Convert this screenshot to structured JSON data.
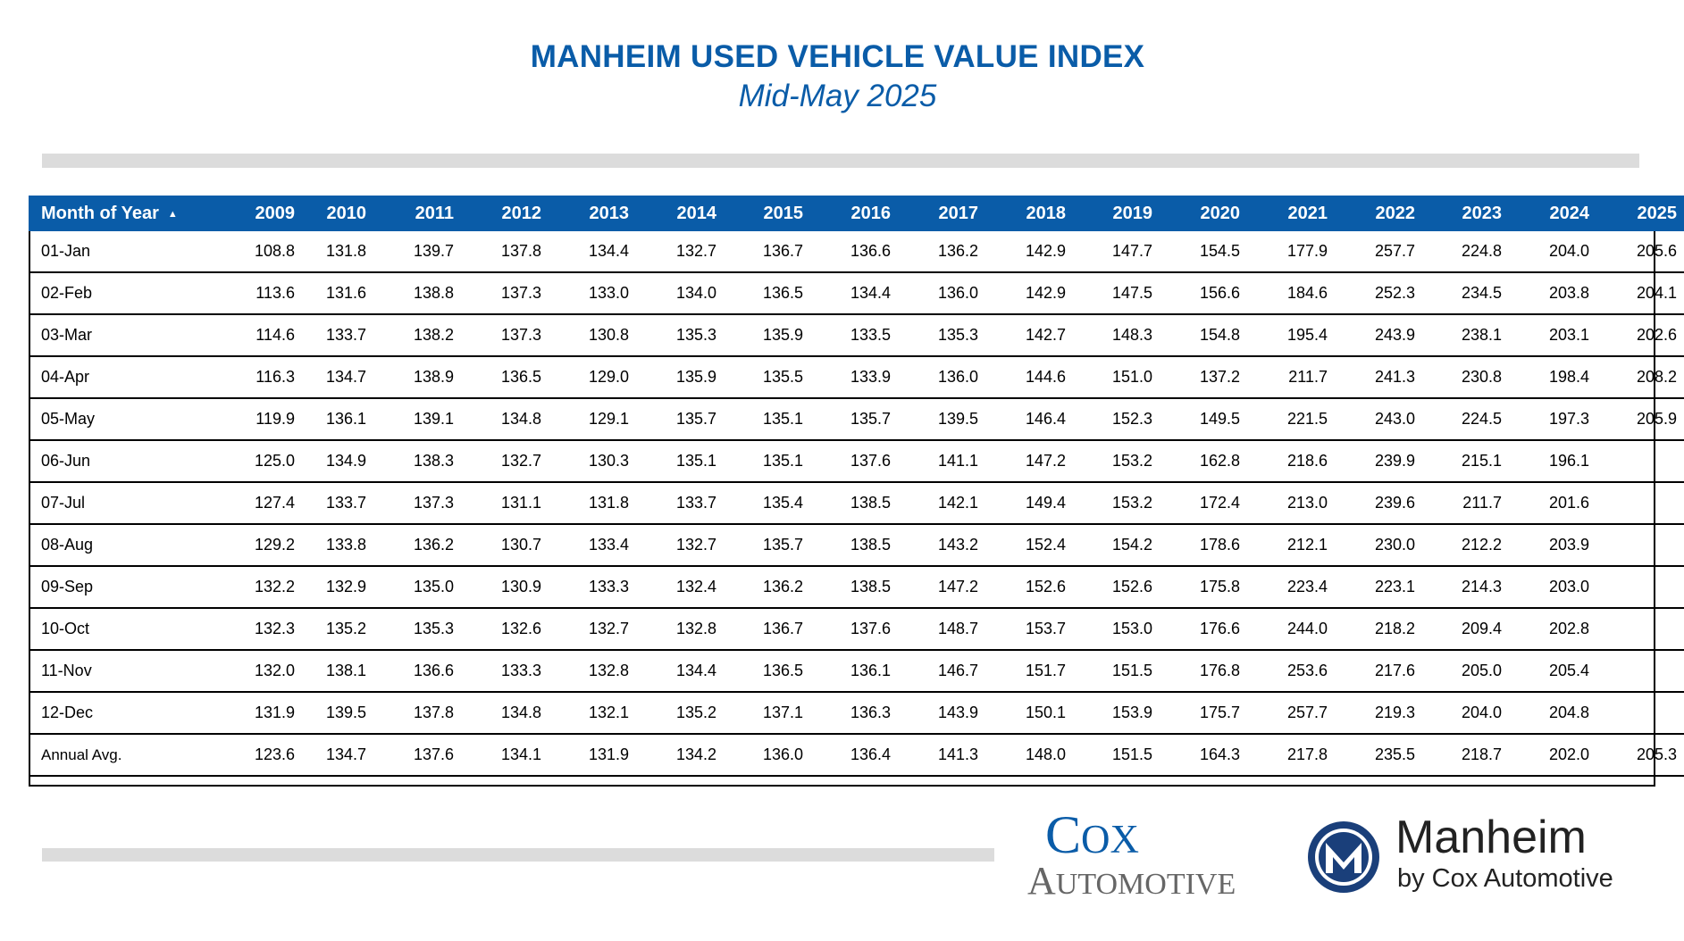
{
  "header": {
    "title": "MANHEIM USED VEHICLE VALUE INDEX",
    "subtitle": "Mid-May 2025"
  },
  "chart_data": {
    "type": "table",
    "title": "MANHEIM USED VEHICLE VALUE INDEX",
    "subtitle": "Mid-May 2025",
    "row_header_label": "Month of Year",
    "columns": [
      "2009",
      "2010",
      "2011",
      "2012",
      "2013",
      "2014",
      "2015",
      "2016",
      "2017",
      "2018",
      "2019",
      "2020",
      "2021",
      "2022",
      "2023",
      "2024",
      "2025"
    ],
    "rows": [
      {
        "label": "01-Jan",
        "values": [
          "108.8",
          "131.8",
          "139.7",
          "137.8",
          "134.4",
          "132.7",
          "136.7",
          "136.6",
          "136.2",
          "142.9",
          "147.7",
          "154.5",
          "177.9",
          "257.7",
          "224.8",
          "204.0",
          "205.6"
        ]
      },
      {
        "label": "02-Feb",
        "values": [
          "113.6",
          "131.6",
          "138.8",
          "137.3",
          "133.0",
          "134.0",
          "136.5",
          "134.4",
          "136.0",
          "142.9",
          "147.5",
          "156.6",
          "184.6",
          "252.3",
          "234.5",
          "203.8",
          "204.1"
        ]
      },
      {
        "label": "03-Mar",
        "values": [
          "114.6",
          "133.7",
          "138.2",
          "137.3",
          "130.8",
          "135.3",
          "135.9",
          "133.5",
          "135.3",
          "142.7",
          "148.3",
          "154.8",
          "195.4",
          "243.9",
          "238.1",
          "203.1",
          "202.6"
        ]
      },
      {
        "label": "04-Apr",
        "values": [
          "116.3",
          "134.7",
          "138.9",
          "136.5",
          "129.0",
          "135.9",
          "135.5",
          "133.9",
          "136.0",
          "144.6",
          "151.0",
          "137.2",
          "211.7",
          "241.3",
          "230.8",
          "198.4",
          "208.2"
        ]
      },
      {
        "label": "05-May",
        "values": [
          "119.9",
          "136.1",
          "139.1",
          "134.8",
          "129.1",
          "135.7",
          "135.1",
          "135.7",
          "139.5",
          "146.4",
          "152.3",
          "149.5",
          "221.5",
          "243.0",
          "224.5",
          "197.3",
          "205.9"
        ]
      },
      {
        "label": "06-Jun",
        "values": [
          "125.0",
          "134.9",
          "138.3",
          "132.7",
          "130.3",
          "135.1",
          "135.1",
          "137.6",
          "141.1",
          "147.2",
          "153.2",
          "162.8",
          "218.6",
          "239.9",
          "215.1",
          "196.1",
          ""
        ]
      },
      {
        "label": "07-Jul",
        "values": [
          "127.4",
          "133.7",
          "137.3",
          "131.1",
          "131.8",
          "133.7",
          "135.4",
          "138.5",
          "142.1",
          "149.4",
          "153.2",
          "172.4",
          "213.0",
          "239.6",
          "211.7",
          "201.6",
          ""
        ]
      },
      {
        "label": "08-Aug",
        "values": [
          "129.2",
          "133.8",
          "136.2",
          "130.7",
          "133.4",
          "132.7",
          "135.7",
          "138.5",
          "143.2",
          "152.4",
          "154.2",
          "178.6",
          "212.1",
          "230.0",
          "212.2",
          "203.9",
          ""
        ]
      },
      {
        "label": "09-Sep",
        "values": [
          "132.2",
          "132.9",
          "135.0",
          "130.9",
          "133.3",
          "132.4",
          "136.2",
          "138.5",
          "147.2",
          "152.6",
          "152.6",
          "175.8",
          "223.4",
          "223.1",
          "214.3",
          "203.0",
          ""
        ]
      },
      {
        "label": "10-Oct",
        "values": [
          "132.3",
          "135.2",
          "135.3",
          "132.6",
          "132.7",
          "132.8",
          "136.7",
          "137.6",
          "148.7",
          "153.7",
          "153.0",
          "176.6",
          "244.0",
          "218.2",
          "209.4",
          "202.8",
          ""
        ]
      },
      {
        "label": "11-Nov",
        "values": [
          "132.0",
          "138.1",
          "136.6",
          "133.3",
          "132.8",
          "134.4",
          "136.5",
          "136.1",
          "146.7",
          "151.7",
          "151.5",
          "176.8",
          "253.6",
          "217.6",
          "205.0",
          "205.4",
          ""
        ]
      },
      {
        "label": "12-Dec",
        "values": [
          "131.9",
          "139.5",
          "137.8",
          "134.8",
          "132.1",
          "135.2",
          "137.1",
          "136.3",
          "143.9",
          "150.1",
          "153.9",
          "175.7",
          "257.7",
          "219.3",
          "204.0",
          "204.8",
          ""
        ]
      },
      {
        "label": "Annual Avg.",
        "values": [
          "123.6",
          "134.7",
          "137.6",
          "134.1",
          "131.9",
          "134.2",
          "136.0",
          "136.4",
          "141.3",
          "148.0",
          "151.5",
          "164.3",
          "217.8",
          "235.5",
          "218.7",
          "202.0",
          "205.3"
        ]
      }
    ]
  },
  "icons": {
    "sort": "sort-ascending-icon",
    "manheim_mark": "manheim-m-logo-icon"
  },
  "colors": {
    "header_blue": "#0a5ca8",
    "grey_bar": "#dcdcdc"
  },
  "logos": {
    "cox_line1": "Cox",
    "cox_line2": "Automotive",
    "manheim_name": "Manheim",
    "manheim_tagline": "by Cox Automotive"
  }
}
